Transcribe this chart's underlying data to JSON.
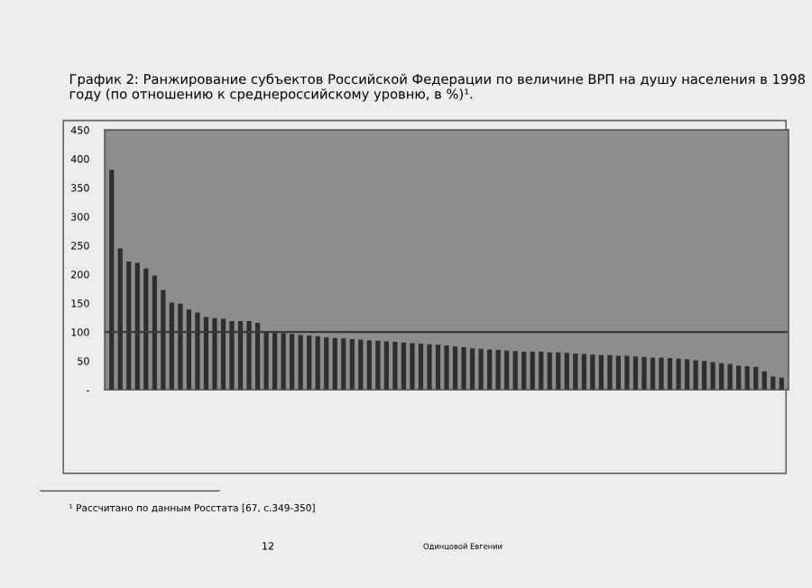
{
  "chart_data": {
    "type": "bar",
    "title": "График 2: Ранжирование субъектов Российской Федерации по величине ВРП на душу населения в 1998 году (по отношению к среднероссийскому уровню, в %)¹.",
    "categories": [
      null,
      null,
      null,
      null,
      null,
      null,
      null,
      null,
      null,
      null,
      null,
      null,
      null,
      null,
      null,
      null,
      null,
      null,
      null,
      null,
      null,
      null,
      null,
      null,
      null,
      null,
      null,
      null,
      null,
      null,
      null,
      null,
      null,
      null,
      null,
      null,
      null,
      null,
      null,
      null,
      null,
      null,
      null,
      null,
      null,
      null,
      null,
      null,
      null,
      null,
      null,
      null,
      null,
      null,
      null,
      null,
      null,
      null,
      null,
      null,
      null,
      null,
      null,
      null,
      null,
      null,
      null,
      null,
      null,
      null,
      null,
      null,
      null,
      null,
      null,
      null,
      null,
      null,
      null
    ],
    "values": [
      381,
      245,
      222,
      220,
      210,
      198,
      173,
      151,
      149,
      139,
      134,
      126,
      124,
      123,
      119,
      119,
      119,
      116,
      102,
      101,
      98,
      97,
      95,
      94,
      93,
      91,
      90,
      89,
      88,
      87,
      86,
      85,
      84,
      83,
      82,
      81,
      80,
      79,
      78,
      77,
      75,
      74,
      72,
      71,
      70,
      69,
      68,
      67,
      66,
      66,
      66,
      65,
      65,
      64,
      63,
      62,
      61,
      60,
      60,
      59,
      59,
      58,
      57,
      56,
      56,
      55,
      54,
      53,
      51,
      50,
      48,
      46,
      45,
      42,
      41,
      40,
      32,
      23,
      21
    ],
    "color": "#2e2e2e",
    "ylim": [
      0,
      450
    ],
    "yticks": [
      {
        "value": 0,
        "label": "-"
      },
      50,
      100,
      150,
      200,
      250,
      300,
      350,
      400,
      450
    ],
    "ref_lines": [
      {
        "axis": "y",
        "value": 100,
        "color": "#3a3a3a"
      }
    ],
    "grid": false,
    "annotations": [
      "¹ Рассчитано по данным Росстата [67, с.349-350]",
      "12",
      "Одинцовой Евгении"
    ]
  }
}
